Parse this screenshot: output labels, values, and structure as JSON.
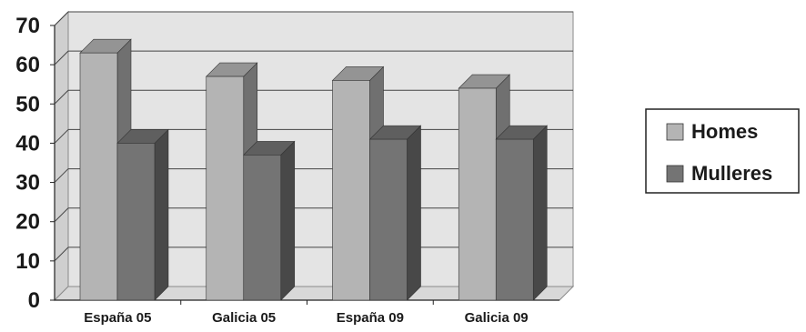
{
  "chart_data": {
    "type": "bar",
    "categories": [
      "España 05",
      "Galicia 05",
      "España 09",
      "Galicia 09"
    ],
    "series": [
      {
        "name": "Homes",
        "values": [
          63,
          57,
          56,
          54
        ],
        "color": "#b4b4b4"
      },
      {
        "name": "Mulleres",
        "values": [
          40,
          37,
          41,
          41
        ],
        "color": "#747474"
      }
    ],
    "ylim": [
      0,
      70
    ],
    "yticks": [
      0,
      10,
      20,
      30,
      40,
      50,
      60,
      70
    ],
    "grid": true,
    "legend": "right",
    "title": "",
    "xlabel": "",
    "ylabel": ""
  }
}
